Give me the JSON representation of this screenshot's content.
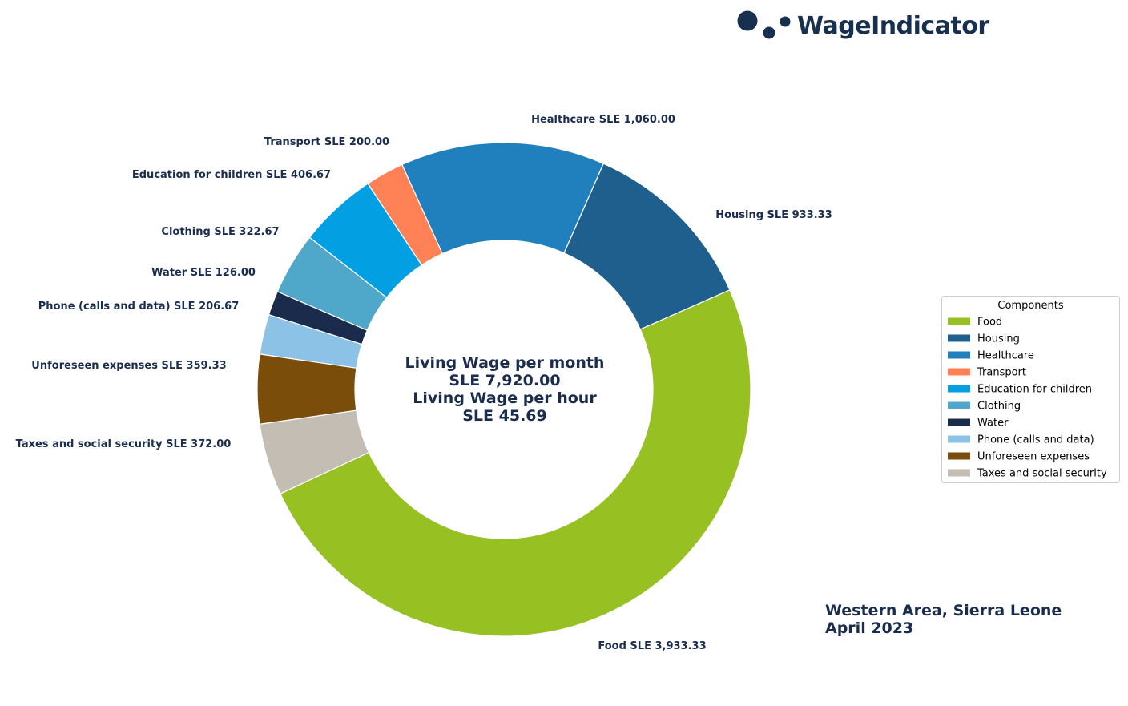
{
  "colors": {
    "text": "#1b2d4f",
    "logo": "#17304f"
  },
  "logo": {
    "icon": "dots-icon",
    "text": "WageIndicator"
  },
  "center": {
    "line1": "Living Wage per month",
    "line2": "SLE 7,920.00",
    "line3": "Living Wage per hour",
    "line4": "SLE 45.69"
  },
  "region": {
    "line1": "Western Area, Sierra Leone",
    "line2": "April 2023"
  },
  "chart_data": {
    "type": "pie",
    "variant": "donut",
    "start": "Food slice begins at the lower-left, slices run counter-clockwise",
    "currency": "SLE",
    "total": 7920.0,
    "slices": [
      {
        "name": "Food",
        "value": 3933.33,
        "label": "Food SLE 3,933.33",
        "color": "#97c023"
      },
      {
        "name": "Housing",
        "value": 933.33,
        "label": "Housing SLE 933.33",
        "color": "#1e5f8e"
      },
      {
        "name": "Healthcare",
        "value": 1060.0,
        "label": "Healthcare SLE 1,060.00",
        "color": "#2080be"
      },
      {
        "name": "Transport",
        "value": 200.0,
        "label": "Transport SLE 200.00",
        "color": "#ff8155"
      },
      {
        "name": "Education for children",
        "value": 406.67,
        "label": "Education for children SLE 406.67",
        "color": "#02a0e3"
      },
      {
        "name": "Clothing",
        "value": 322.67,
        "label": "Clothing SLE 322.67",
        "color": "#4fa7c9"
      },
      {
        "name": "Water",
        "value": 126.0,
        "label": "Water SLE 126.00",
        "color": "#1a2b4b"
      },
      {
        "name": "Phone (calls and data)",
        "value": 206.67,
        "label": "Phone (calls and data) SLE 206.67",
        "color": "#8cc2e5"
      },
      {
        "name": "Unforeseen expenses",
        "value": 359.33,
        "label": "Unforeseen expenses SLE 359.33",
        "color": "#7b4d0a"
      },
      {
        "name": "Taxes and social security",
        "value": 372.0,
        "label": "Taxes and social security SLE 372.00",
        "color": "#c4bdb3"
      }
    ],
    "legend": {
      "title": "Components",
      "placement": "right"
    }
  }
}
